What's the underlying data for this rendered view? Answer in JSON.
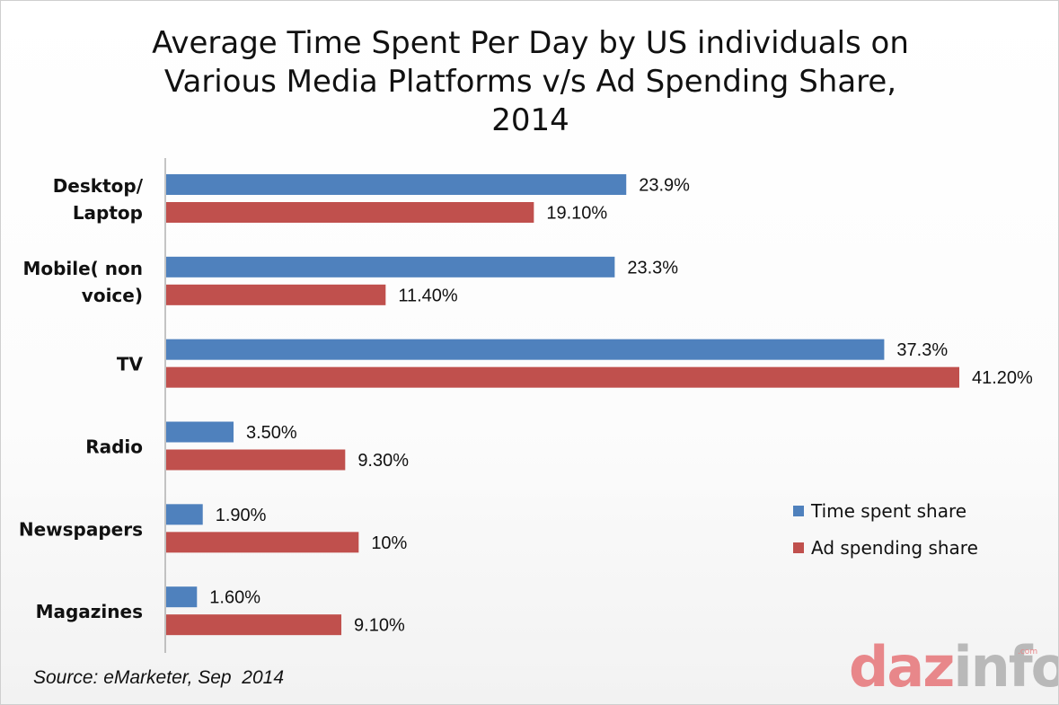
{
  "chart_data": {
    "type": "bar",
    "orientation": "horizontal",
    "title_lines": [
      "Average Time Spent Per Day by US individuals on",
      "Various Media Platforms v/s Ad Spending Share,",
      "2014"
    ],
    "categories": [
      [
        "Desktop/",
        "Laptop"
      ],
      [
        "Mobile( non",
        "voice)"
      ],
      [
        "TV"
      ],
      [
        "Radio"
      ],
      [
        "Newspapers"
      ],
      [
        "Magazines"
      ]
    ],
    "series": [
      {
        "name": "Time spent share",
        "color": "#4f81bd",
        "values": [
          23.9,
          23.3,
          37.3,
          3.5,
          1.9,
          1.6
        ],
        "labels": [
          "23.9%",
          "23.3%",
          "37.3%",
          "3.50%",
          "1.90%",
          "1.60%"
        ]
      },
      {
        "name": "Ad spending share",
        "color": "#c0504d",
        "values": [
          19.1,
          11.4,
          41.2,
          9.3,
          10,
          9.1
        ],
        "labels": [
          "19.10%",
          "11.40%",
          "41.20%",
          "9.30%",
          "10%",
          "9.10%"
        ]
      }
    ],
    "xlim": [
      0,
      41.2
    ],
    "grid": false,
    "legend_position": "right"
  },
  "source": "Source: eMarketer, Sep  2014",
  "logo": {
    "part1": "daz",
    "part2": "info",
    "suffix": ".com"
  }
}
